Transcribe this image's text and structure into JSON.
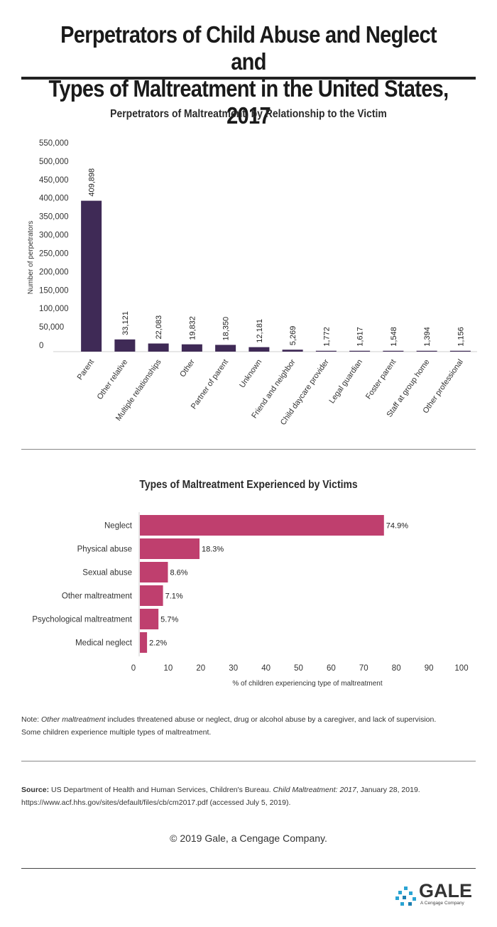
{
  "page": {
    "title_line1": "Perpetrators of Child Abuse and Neglect and",
    "title_line2": "Types of Maltreatment in the United States, 2017"
  },
  "colors": {
    "bar_chart_fill": "#3f2a56",
    "hbar_chart_fill": "#bf3f6e",
    "logo_accent": "#2aa4d3"
  },
  "chart_data": [
    {
      "type": "bar",
      "title": "Perpetrators of Maltreatment, by Relationship to the Victim",
      "xlabel": "",
      "ylabel": "Number of perpetrators",
      "ylim": [
        0,
        550000
      ],
      "yticks": [
        "550,000",
        "500,000",
        "450,000",
        "400,000",
        "350,000",
        "300,000",
        "250,000",
        "200,000",
        "150,000",
        "100,000",
        "50,000",
        "0"
      ],
      "categories": [
        "Parent",
        "Other relative",
        "Multiple relationships",
        "Other",
        "Partner of parent",
        "Unknown",
        "Friend and neighbor",
        "Child daycare provider",
        "Legal guardian",
        "Foster parent",
        "Staff at group home",
        "Other professional"
      ],
      "values": [
        409898,
        33121,
        22083,
        19832,
        18350,
        12181,
        5269,
        1772,
        1617,
        1548,
        1394,
        1156
      ],
      "value_labels": [
        "409,898",
        "33,121",
        "22,083",
        "19,832",
        "18,350",
        "12,181",
        "5,269",
        "1,772",
        "1,617",
        "1,548",
        "1,394",
        "1,156"
      ],
      "grid": false
    },
    {
      "type": "bar",
      "orientation": "horizontal",
      "title": "Types of Maltreatment Experienced by Victims",
      "xlabel": "% of children experiencing type of maltreatment",
      "ylabel": "",
      "xlim": [
        0,
        100
      ],
      "xticks": [
        "0",
        "10",
        "20",
        "30",
        "40",
        "50",
        "60",
        "70",
        "80",
        "90",
        "100"
      ],
      "categories": [
        "Neglect",
        "Physical abuse",
        "Sexual abuse",
        "Other maltreatment",
        "Psychological maltreatment",
        "Medical neglect"
      ],
      "values": [
        74.9,
        18.3,
        8.6,
        7.1,
        5.7,
        2.2
      ],
      "value_labels": [
        "74.9%",
        "18.3%",
        "8.6%",
        "7.1%",
        "5.7%",
        "2.2%"
      ],
      "grid": false
    }
  ],
  "note": {
    "prefix": "Note: ",
    "term": "Other maltreatment",
    "line1_rest": " includes threatened abuse or neglect, drug or alcohol abuse by a caregiver, and lack of supervision.",
    "line2": "Some children experience multiple types of maltreatment."
  },
  "source": {
    "label": "Source:",
    "text1": " US Department of Health and Human Services, Children's Bureau. ",
    "publication": "Child Maltreatment: 2017",
    "text2": ", January 28, 2019.",
    "url_line": "https://www.acf.hhs.gov/sites/default/files/cb/cm2017.pdf (accessed July 5, 2019)."
  },
  "copyright": "© 2019 Gale, a Cengage Company.",
  "logo": {
    "word": "GALE",
    "tagline": "A Cengage Company"
  }
}
